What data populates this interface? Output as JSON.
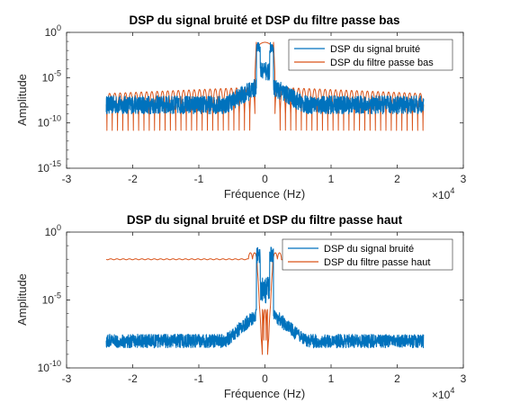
{
  "chart_data": [
    {
      "type": "line",
      "title": "DSP du signal bruité et DSP du filtre passe bas",
      "xlabel": "Fréquence (Hz)",
      "ylabel": "Amplitude",
      "x_multiplier": "×10^4",
      "xlim": [
        -30000,
        30000
      ],
      "ylim": [
        1e-15,
        1
      ],
      "yscale": "log",
      "xtick_labels": [
        "-3",
        "-2",
        "-1",
        "0",
        "1",
        "2",
        "3"
      ],
      "ytick_labels": [
        {
          "base": "10",
          "exp": "0"
        },
        {
          "base": "10",
          "exp": "-5"
        },
        {
          "base": "10",
          "exp": "-10"
        },
        {
          "base": "10",
          "exp": "-15"
        }
      ],
      "legend_position": "top-right",
      "grid": false,
      "series": [
        {
          "name": "DSP du signal bruité",
          "color": "#0072BD",
          "x_range": [
            -24000,
            24000
          ],
          "floor": 1e-08,
          "floor_band": [
            1e-09,
            1e-07
          ],
          "peaks": [
            {
              "x": -1000,
              "value": 0.08
            },
            {
              "x": 1000,
              "value": 0.08
            },
            {
              "x": 0,
              "value": 5e-05
            }
          ]
        },
        {
          "name": "DSP du filtre passe bas",
          "color": "#D95319",
          "x_range": [
            -24000,
            24000
          ],
          "lobe_max": 1e-06,
          "notch_min": 1e-11,
          "lobe_spacing": 800,
          "passband": {
            "x": [
              -1500,
              1500
            ],
            "value": 0.08
          }
        }
      ]
    },
    {
      "type": "line",
      "title": "DSP du signal bruité et DSP du filtre passe haut",
      "xlabel": "Fréquence (Hz)",
      "ylabel": "Amplitude",
      "x_multiplier": "×10^4",
      "xlim": [
        -30000,
        30000
      ],
      "ylim": [
        1e-10,
        1
      ],
      "yscale": "log",
      "xtick_labels": [
        "-3",
        "-2",
        "-1",
        "0",
        "1",
        "2",
        "3"
      ],
      "ytick_labels": [
        {
          "base": "10",
          "exp": "0"
        },
        {
          "base": "10",
          "exp": "-5"
        },
        {
          "base": "10",
          "exp": "-10"
        }
      ],
      "legend_position": "top-right",
      "grid": false,
      "series": [
        {
          "name": "DSP du signal bruité",
          "color": "#0072BD",
          "x_range": [
            -24000,
            24000
          ],
          "floor": 1e-08,
          "floor_band": [
            3e-09,
            3e-08
          ],
          "peaks": [
            {
              "x": -1000,
              "value": 0.08
            },
            {
              "x": 1000,
              "value": 0.08
            },
            {
              "x": 0,
              "value": 5e-05
            }
          ]
        },
        {
          "name": "DSP du filtre passe haut",
          "color": "#D95319",
          "x_range": [
            -24000,
            24000
          ],
          "passband_value": 0.01,
          "stopband": {
            "x": [
              -1200,
              1200
            ],
            "value": 1e-09
          }
        }
      ]
    }
  ]
}
